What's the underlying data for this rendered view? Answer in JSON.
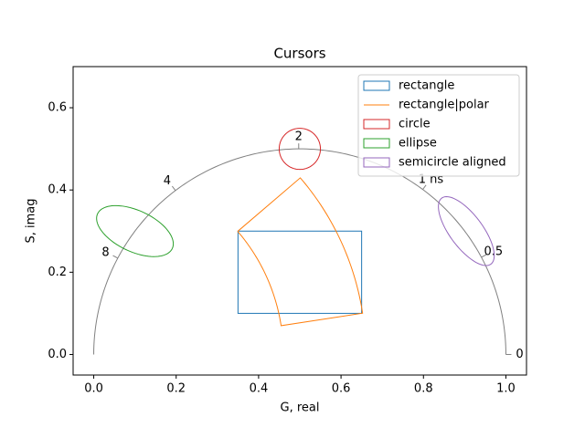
{
  "chart_data": {
    "type": "phasor",
    "title": "Cursors",
    "x_label": "G, real",
    "y_label": "S, imag",
    "xlim": [
      -0.05,
      1.05
    ],
    "ylim": [
      -0.05,
      0.7
    ],
    "xticks": [
      {
        "value": 0,
        "label": "0.0"
      },
      0.2,
      0.4,
      0.6,
      0.8,
      {
        "value": 1,
        "label": "1.0"
      }
    ],
    "yticks": [
      {
        "value": 0,
        "label": "0.0"
      },
      0.2,
      0.4,
      0.6
    ],
    "legend": "upper right",
    "semicircle": {
      "color": "#808080",
      "frequency": 80,
      "lifetimes": [
        0,
        0.5,
        {
          "value": 1,
          "label": "1 ns"
        },
        2,
        4,
        8
      ]
    },
    "series": [
      {
        "name": "rectangle",
        "color": "#1f77b4",
        "shape": "rectangle",
        "g": [
          0.35,
          0.65
        ],
        "s": [
          0.1,
          0.3
        ]
      },
      {
        "name": "rectangle|polar",
        "color": "#ff7f0e",
        "shape": "polar",
        "phase": [
          8.75,
          40.6
        ],
        "modulation": [
          0.46,
          0.66
        ]
      },
      {
        "name": "circle",
        "color": "#d62728",
        "shape": "circle",
        "center": [
          0.5,
          0.5
        ],
        "radius": 0.05
      },
      {
        "name": "ellipse",
        "color": "#2ca02c",
        "shape": "ellipse",
        "center": [
          0.1,
          0.3
        ],
        "radius": 0.1,
        "radius_minor": 0.05,
        "angle": -25
      },
      {
        "name": "semicircle aligned",
        "color": "#9467bd",
        "shape": "aligned",
        "center": [
          0.904,
          0.3
        ],
        "radius": 0.1,
        "radius_minor": 0.04
      }
    ]
  }
}
